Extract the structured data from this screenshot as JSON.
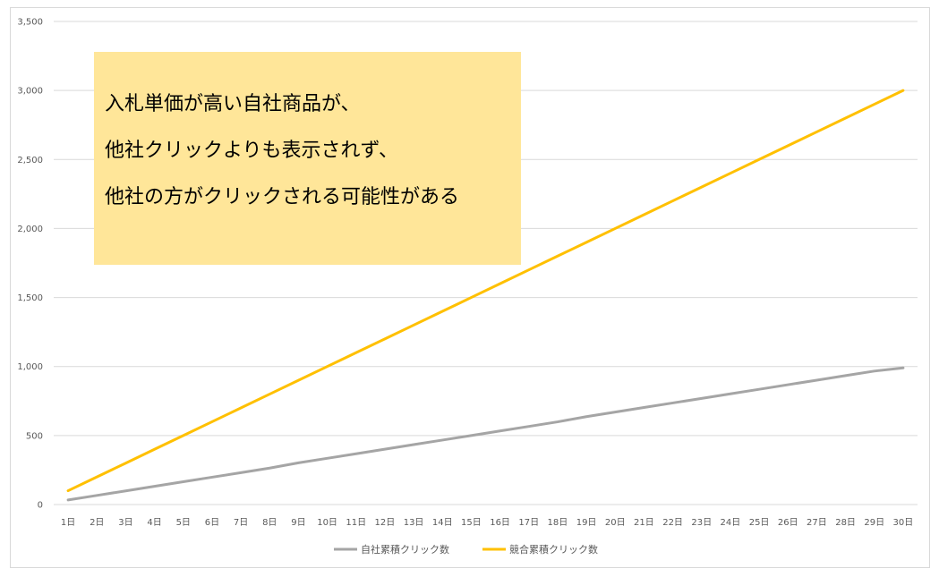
{
  "chart_data": {
    "type": "line",
    "categories": [
      "1日",
      "2日",
      "3日",
      "4日",
      "5日",
      "6日",
      "7日",
      "8日",
      "9日",
      "10日",
      "11日",
      "12日",
      "13日",
      "14日",
      "15日",
      "16日",
      "17日",
      "18日",
      "19日",
      "20日",
      "21日",
      "22日",
      "23日",
      "24日",
      "25日",
      "26日",
      "27日",
      "28日",
      "29日",
      "30日"
    ],
    "series": [
      {
        "name": "自社累積クリック数",
        "color": "#a5a5a5",
        "values": [
          33,
          66,
          99,
          132,
          165,
          198,
          231,
          264,
          302,
          335,
          368,
          401,
          434,
          467,
          500,
          533,
          566,
          599,
          637,
          670,
          703,
          736,
          769,
          802,
          835,
          868,
          901,
          934,
          967,
          990
        ]
      },
      {
        "name": "競合累積クリック数",
        "color": "#ffc000",
        "values": [
          100,
          200,
          300,
          400,
          500,
          600,
          700,
          800,
          900,
          1000,
          1100,
          1200,
          1300,
          1400,
          1500,
          1600,
          1700,
          1800,
          1900,
          2000,
          2100,
          2200,
          2300,
          2400,
          2500,
          2600,
          2700,
          2800,
          2900,
          3000
        ]
      }
    ],
    "ylim": [
      0,
      3500
    ],
    "yticks": [
      0,
      500,
      1000,
      1500,
      2000,
      2500,
      3000,
      3500
    ],
    "ytick_labels": [
      "0",
      "500",
      "1,000",
      "1,500",
      "2,000",
      "2,500",
      "3,000",
      "3,500"
    ],
    "grid": true,
    "legend_position": "bottom",
    "title": "",
    "xlabel": "",
    "ylabel": ""
  },
  "callout": {
    "lines": [
      "入札単価が高い自社商品が、",
      "他社クリックよりも表示されず、",
      "他社の方がクリックされる可能性がある"
    ],
    "background": "#ffe699"
  },
  "colors": {
    "grid": "#d9d9d9",
    "axis_text": "#595959",
    "frame": "#d9d9d9"
  }
}
